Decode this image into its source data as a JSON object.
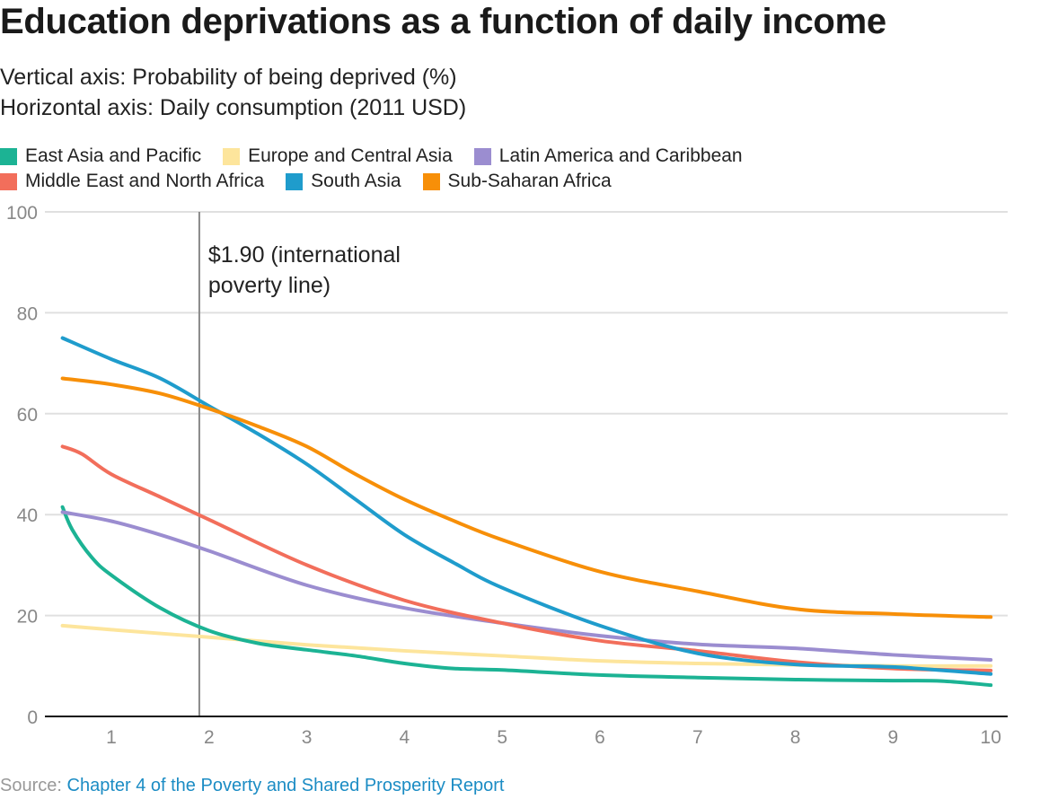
{
  "header": {
    "title": "Education deprivations as a function of daily income",
    "subtitle_1": "Vertical axis: Probability of being deprived (%)",
    "subtitle_2": "Horizontal axis: Daily consumption (2011 USD)"
  },
  "source": {
    "label": "Source:",
    "link_text": "Chapter 4 of the Poverty and Shared Prosperity Report"
  },
  "chart_data": {
    "type": "line",
    "title": "Education deprivations as a function of daily income",
    "xlabel": "Daily consumption (2011 USD)",
    "ylabel": "Probability of being deprived (%)",
    "xlim": [
      0.5,
      10
    ],
    "ylim": [
      0,
      100
    ],
    "x_ticks": [
      1,
      2,
      3,
      4,
      5,
      6,
      7,
      8,
      9,
      10
    ],
    "y_ticks": [
      0,
      20,
      40,
      60,
      80,
      100
    ],
    "grid": "horizontal",
    "legend_position": "top",
    "annotation": {
      "x": 1.9,
      "text_line_1": "$1.90 (international",
      "text_line_2": "poverty line)"
    },
    "series": [
      {
        "name": "East Asia and Pacific",
        "color": "#1cb394",
        "x": [
          0.5,
          0.6,
          0.8,
          1,
          1.5,
          2,
          2.5,
          3,
          3.5,
          4,
          4.5,
          5,
          6,
          7,
          8,
          9,
          9.5,
          10
        ],
        "values": [
          41.5,
          37,
          31.5,
          28,
          21.5,
          17,
          14.5,
          13.2,
          12,
          10.5,
          9.5,
          9.2,
          8.2,
          7.7,
          7.3,
          7.1,
          7,
          6.2
        ]
      },
      {
        "name": "Europe and Central Asia",
        "color": "#fde59c",
        "x": [
          0.5,
          1,
          2,
          3,
          4,
          5,
          6,
          7,
          8,
          9,
          10
        ],
        "values": [
          18,
          17.2,
          15.7,
          14.2,
          13,
          12,
          11,
          10.5,
          10.2,
          10,
          10
        ]
      },
      {
        "name": "Latin America and Caribbean",
        "color": "#9b8dd0",
        "x": [
          0.5,
          1,
          1.5,
          2,
          3,
          4,
          5,
          6,
          7,
          8,
          9,
          10
        ],
        "values": [
          40.5,
          38.7,
          36,
          32.8,
          26,
          21.5,
          18.5,
          16,
          14.3,
          13.5,
          12.2,
          11.2
        ]
      },
      {
        "name": "Middle East and North Africa",
        "color": "#f26e5b",
        "x": [
          0.5,
          0.7,
          1,
          1.5,
          2,
          3,
          4,
          5,
          6,
          7,
          8,
          9,
          10
        ],
        "values": [
          53.5,
          52,
          48,
          43.5,
          39,
          30,
          23,
          18.5,
          15,
          13,
          10.8,
          9.5,
          9.1
        ]
      },
      {
        "name": "South Asia",
        "color": "#1f9ccc",
        "x": [
          0.5,
          1,
          1.5,
          2,
          2.5,
          3,
          3.5,
          4,
          4.5,
          5,
          6,
          7,
          8,
          9,
          10
        ],
        "values": [
          75,
          70.8,
          67,
          61.5,
          56,
          50,
          43,
          36,
          30.5,
          25.5,
          18,
          12.5,
          10.3,
          9.8,
          8.4
        ]
      },
      {
        "name": "Sub-Saharan Africa",
        "color": "#f78f08",
        "x": [
          0.5,
          1,
          1.5,
          2,
          2.5,
          3,
          3.5,
          4,
          4.5,
          5,
          6,
          7,
          8,
          9,
          10
        ],
        "values": [
          67,
          65.8,
          64,
          61,
          57.5,
          53.5,
          48,
          43,
          38.8,
          35,
          28.7,
          24.8,
          21.3,
          20.3,
          19.7
        ]
      }
    ]
  }
}
